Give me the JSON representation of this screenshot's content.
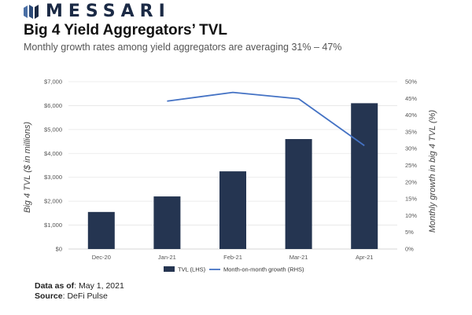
{
  "brand": {
    "name": "MESSARI",
    "logo_color": "#1b2a45"
  },
  "title": "Big 4 Yield Aggregators’ TVL",
  "subtitle": "Monthly growth rates among yield aggregators are averaging 31% – 47%",
  "footer": {
    "data_as_of_label": "Data as of",
    "data_as_of_value": ": May 1, 2021",
    "source_label": "Source",
    "source_value": ": DeFi Pulse"
  },
  "chart_data": {
    "type": "bar",
    "categories": [
      "Dec-20",
      "Jan-21",
      "Feb-21",
      "Mar-21",
      "Apr-21"
    ],
    "series": [
      {
        "name": "TVL (LHS)",
        "type": "bar",
        "axis": "left",
        "color": "#253551",
        "values": [
          1550,
          2200,
          3250,
          4600,
          6100
        ]
      },
      {
        "name": "Month-on-month growth (RHS)",
        "type": "line",
        "axis": "right",
        "color": "#4472c4",
        "values": [
          null,
          44.2,
          46.8,
          44.9,
          30.9
        ]
      }
    ],
    "ylabel": "Big 4 TVL ($ in millions)",
    "y2label": "Monthly growth in big 4 TVL (%)",
    "ylim": [
      0,
      7000
    ],
    "y2lim": [
      0,
      50
    ],
    "yticks": [
      "$0",
      "$1,000",
      "$2,000",
      "$3,000",
      "$4,000",
      "$5,000",
      "$6,000",
      "$7,000"
    ],
    "y2ticks": [
      "0%",
      "5%",
      "10%",
      "15%",
      "20%",
      "25%",
      "30%",
      "35%",
      "40%",
      "45%",
      "50%"
    ],
    "grid": true,
    "legend": "bottom"
  }
}
